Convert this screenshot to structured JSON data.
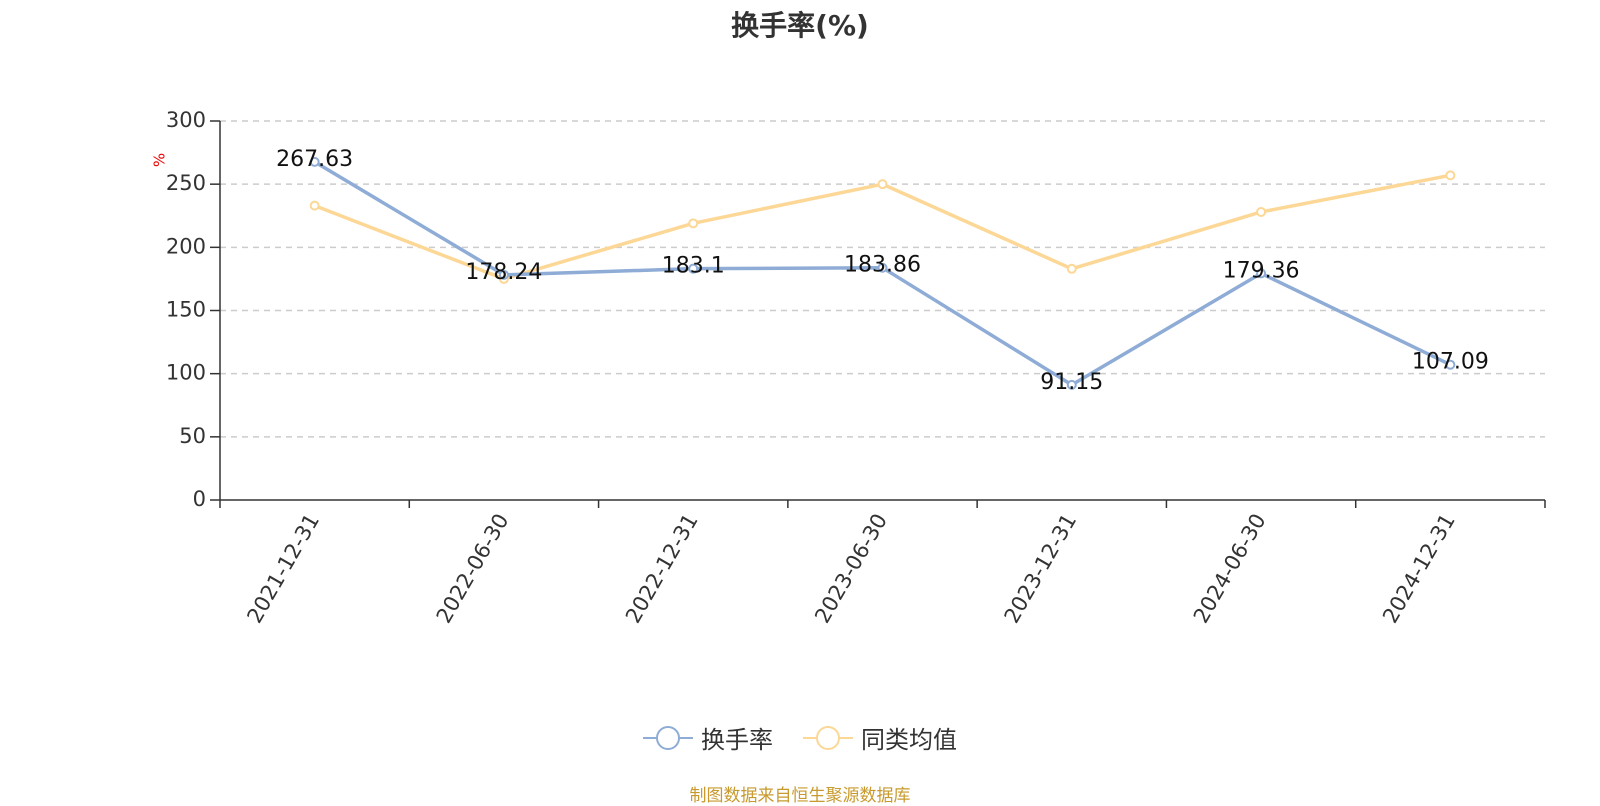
{
  "chart_data": {
    "type": "line",
    "title": "换手率(%)",
    "ylabel": "%",
    "xlabel": "",
    "ylim": [
      0,
      300
    ],
    "yticks": [
      0,
      50,
      100,
      150,
      200,
      250,
      300
    ],
    "grid": true,
    "legend_position": "bottom-center",
    "categories": [
      "2021-12-31",
      "2022-06-30",
      "2022-12-31",
      "2023-06-30",
      "2023-12-31",
      "2024-06-30",
      "2024-12-31"
    ],
    "series": [
      {
        "name": "换手率",
        "color": "#8eacd6",
        "values": [
          267.63,
          178.24,
          183.1,
          183.86,
          91.15,
          179.36,
          107.09
        ],
        "labels": [
          "267.63",
          "178.24",
          "183.1",
          "183.86",
          "91.15",
          "179.36",
          "107.09"
        ]
      },
      {
        "name": "同类均值",
        "color": "#fcd796",
        "values": [
          233,
          175,
          219,
          250,
          183,
          228,
          257
        ]
      }
    ]
  },
  "source_note": "制图数据来自恒生聚源数据库"
}
